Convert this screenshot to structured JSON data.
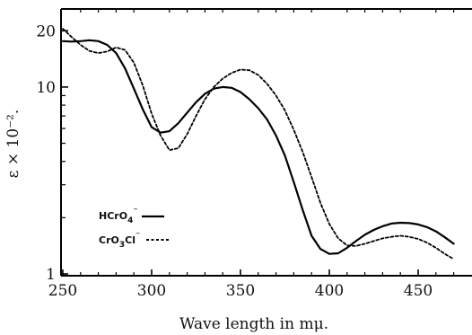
{
  "chart_data": {
    "type": "line",
    "title": "",
    "xlabel": "Wave length in mμ.",
    "ylabel": "ε × 10⁻².",
    "xscale": "linear",
    "yscale": "log",
    "xlim": [
      250,
      470
    ],
    "ylim": [
      1,
      23
    ],
    "grid": false,
    "legend_placement": "lower-left",
    "x_ticks": [
      250,
      300,
      350,
      400,
      450
    ],
    "x_tick_labels": [
      "250",
      "300",
      "350",
      "400",
      "450"
    ],
    "y_ticks": [
      1,
      10,
      20
    ],
    "y_tick_labels": [
      "1",
      "10",
      "20"
    ],
    "series": [
      {
        "name": "HCrO4⁻",
        "style": "solid",
        "color": "#000000",
        "x": [
          250,
          255,
          260,
          265,
          270,
          275,
          280,
          285,
          290,
          295,
          300,
          305,
          310,
          315,
          320,
          325,
          330,
          335,
          340,
          345,
          350,
          355,
          360,
          365,
          370,
          375,
          380,
          385,
          390,
          395,
          400,
          405,
          410,
          415,
          420,
          425,
          430,
          435,
          440,
          445,
          450,
          455,
          460,
          465,
          470
        ],
        "y": [
          17.6,
          17.5,
          17.6,
          17.8,
          17.6,
          16.8,
          15.2,
          12.6,
          9.8,
          7.6,
          6.1,
          5.7,
          5.8,
          6.4,
          7.3,
          8.3,
          9.2,
          9.8,
          10.0,
          9.9,
          9.4,
          8.6,
          7.7,
          6.7,
          5.5,
          4.3,
          3.1,
          2.2,
          1.6,
          1.36,
          1.28,
          1.29,
          1.38,
          1.5,
          1.62,
          1.72,
          1.8,
          1.86,
          1.88,
          1.87,
          1.84,
          1.78,
          1.69,
          1.57,
          1.45
        ]
      },
      {
        "name": "CrO3Cl⁻",
        "style": "dashed",
        "color": "#000000",
        "x": [
          250,
          255,
          260,
          265,
          270,
          275,
          280,
          285,
          290,
          295,
          300,
          305,
          310,
          315,
          320,
          325,
          330,
          335,
          340,
          345,
          350,
          355,
          360,
          365,
          370,
          375,
          380,
          385,
          390,
          395,
          400,
          405,
          410,
          415,
          420,
          425,
          430,
          435,
          440,
          445,
          450,
          455,
          460,
          465,
          470
        ],
        "y": [
          20.5,
          18.5,
          16.8,
          15.6,
          15.2,
          15.5,
          16.3,
          15.8,
          13.5,
          10.2,
          7.2,
          5.5,
          4.6,
          4.7,
          5.6,
          7.0,
          8.6,
          10.0,
          11.1,
          11.9,
          12.4,
          12.3,
          11.6,
          10.4,
          9.0,
          7.5,
          5.9,
          4.5,
          3.3,
          2.4,
          1.85,
          1.55,
          1.42,
          1.41,
          1.45,
          1.5,
          1.55,
          1.58,
          1.6,
          1.58,
          1.54,
          1.47,
          1.38,
          1.28,
          1.2
        ]
      }
    ]
  },
  "legend": [
    {
      "label": "HCrO",
      "sub": "4",
      "sup": "⁻",
      "style": "solid"
    },
    {
      "label": "CrO",
      "sub": "3",
      "rest": "Cl",
      "sup": "⁻",
      "style": "dashed"
    }
  ]
}
